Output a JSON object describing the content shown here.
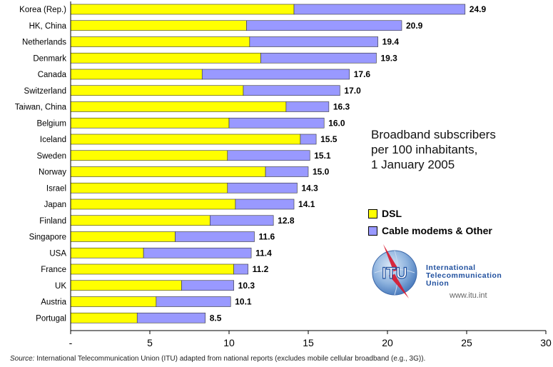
{
  "chart_data": {
    "type": "bar",
    "orientation": "horizontal",
    "stacked": true,
    "categories": [
      "Korea (Rep.)",
      "HK, China",
      "Netherlands",
      "Denmark",
      "Canada",
      "Switzerland",
      "Taiwan, China",
      "Belgium",
      "Iceland",
      "Sweden",
      "Norway",
      "Israel",
      "Japan",
      "Finland",
      "Singapore",
      "USA",
      "France",
      "UK",
      "Austria",
      "Portugal"
    ],
    "series": [
      {
        "name": "DSL",
        "color": "#ffff00",
        "values": [
          14.1,
          11.1,
          11.3,
          12.0,
          8.3,
          10.9,
          13.6,
          10.0,
          14.5,
          9.9,
          12.3,
          9.9,
          10.4,
          8.8,
          6.6,
          4.6,
          10.3,
          7.0,
          5.4,
          4.2
        ]
      },
      {
        "name": "Cable modems & Other",
        "color": "#9999ff",
        "values": [
          10.8,
          9.8,
          8.1,
          7.3,
          9.3,
          6.1,
          2.7,
          6.0,
          1.0,
          5.2,
          2.7,
          4.4,
          3.7,
          4.0,
          5.0,
          6.8,
          0.9,
          3.3,
          4.7,
          4.3
        ]
      }
    ],
    "totals": [
      "24.9",
      "20.9",
      "19.4",
      "19.3",
      "17.6",
      "17.0",
      "16.3",
      "16.0",
      "15.5",
      "15.1",
      "15.0",
      "14.3",
      "14.1",
      "12.8",
      "11.6",
      "11.4",
      "11.2",
      "10.3",
      "10.1",
      "8.5"
    ],
    "xlim": [
      0,
      30
    ],
    "xticks": [
      "-",
      "5",
      "10",
      "15",
      "20",
      "25",
      "30"
    ],
    "annotation": [
      "Broadband subscribers",
      "per 100 inhabitants,",
      "1 January 2005"
    ],
    "legend_position": "right"
  },
  "logo": {
    "mark": "ITU",
    "name_lines": [
      "International",
      "Telecommunication",
      "Union"
    ],
    "url": "www.itu.int"
  },
  "source": {
    "label": "Source:",
    "text": " International Telecommunication Union (ITU) adapted from national reports (excludes mobile cellular broadband (e.g., 3G))."
  }
}
